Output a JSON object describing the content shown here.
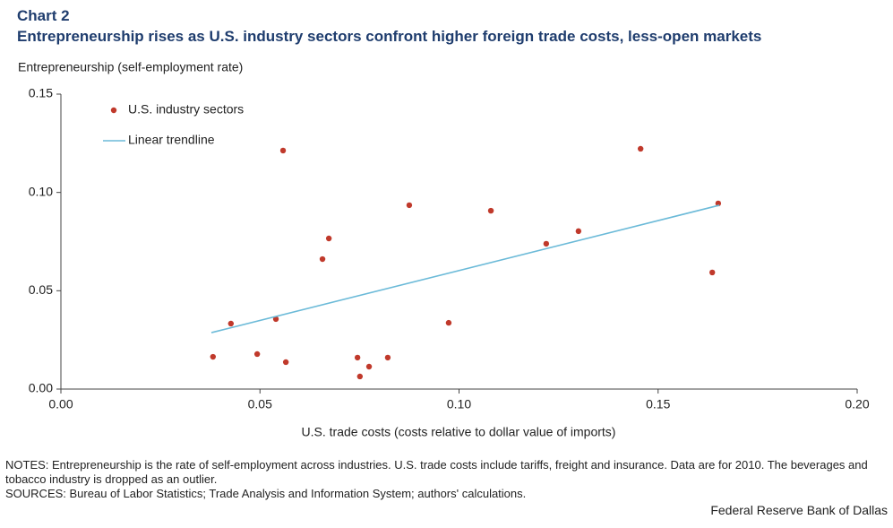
{
  "chart_data": {
    "type": "scatter",
    "title": "Chart 2",
    "subtitle": "Entrepreneurship rises as U.S. industry sectors confront higher foreign trade costs, less-open markets",
    "y_label": "Entrepreneurship  (self-employment  rate)",
    "x_label": "U.S. trade costs (costs relative to dollar value of imports)",
    "xlim": [
      0,
      0.2
    ],
    "xticks": [
      {
        "value": 0,
        "label": "0.00"
      },
      {
        "value": 0.05,
        "label": "0.05"
      },
      {
        "value": 0.1,
        "label": "0.10"
      },
      {
        "value": 0.15,
        "label": "0.15"
      },
      {
        "value": 0.2,
        "label": "0.20"
      }
    ],
    "ylim": [
      0,
      0.15
    ],
    "yticks": [
      {
        "value": 0,
        "label": "0.00"
      },
      {
        "value": 0.05,
        "label": "0.05"
      },
      {
        "value": 0.1,
        "label": "0.10"
      },
      {
        "value": 0.15,
        "label": "0.15"
      }
    ],
    "series": [
      {
        "name": "U.S. industry sectors",
        "type": "scatter",
        "color": "#c0392b",
        "x": [
          0.0382,
          0.0427,
          0.0493,
          0.054,
          0.0558,
          0.0565,
          0.0657,
          0.0673,
          0.0745,
          0.0751,
          0.0774,
          0.0821,
          0.0875,
          0.0974,
          0.108,
          0.1219,
          0.13,
          0.1456,
          0.1636,
          0.1651
        ],
        "values": [
          0.0164,
          0.0333,
          0.0178,
          0.0356,
          0.1213,
          0.0137,
          0.0661,
          0.0766,
          0.016,
          0.0064,
          0.0114,
          0.016,
          0.0935,
          0.0337,
          0.0907,
          0.0739,
          0.0803,
          0.1222,
          0.0593,
          0.0944
        ]
      },
      {
        "name": "Linear trendline",
        "type": "line",
        "color": "#6bbad8",
        "x": [
          0.0378,
          0.1654
        ],
        "values": [
          0.0287,
          0.0935
        ]
      }
    ]
  },
  "notes": "NOTES: Entrepreneurship is the rate of self-employment across industries. U.S. trade costs include tariffs, freight and insurance. Data are for 2010. The beverages and tobacco industry is dropped as an outlier.",
  "sources": "SOURCES: Bureau of Labor Statistics; Trade Analysis and Information System; authors' calculations.",
  "footer": "Federal Reserve Bank of Dallas"
}
